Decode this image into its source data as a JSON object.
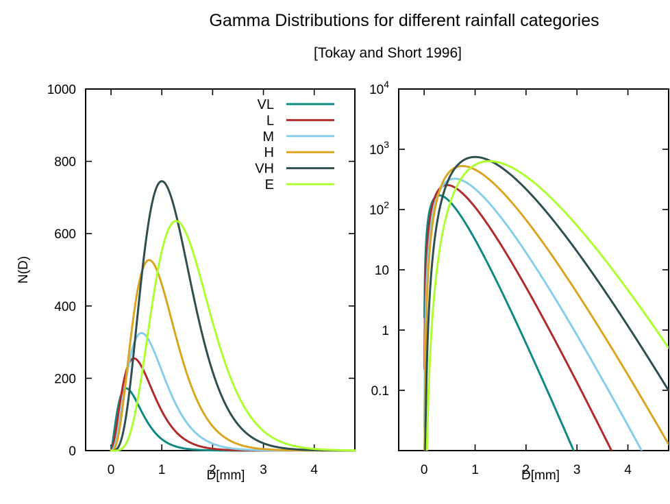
{
  "title": "Gamma Distributions for different rainfall categories",
  "subtitle": "[Tokay and Short 1996]",
  "chart_data": [
    {
      "type": "line",
      "panel": "linear",
      "xlabel": "D[mm]",
      "ylabel": "N(D)",
      "xlim": [
        -0.5,
        4.8
      ],
      "ylim": [
        0,
        1000
      ],
      "x_ticks": [
        0,
        1,
        2,
        3,
        4
      ],
      "x_tick_labels": [
        "0",
        "1",
        "2",
        "3",
        "4"
      ],
      "y_ticks": [
        0,
        200,
        400,
        600,
        800,
        1000
      ],
      "y_tick_labels": [
        "0",
        "200",
        "400",
        "600",
        "800",
        "1000"
      ],
      "y_scale": "linear",
      "grid": false,
      "legend_position": "top-right",
      "x_range": [
        0,
        4.8
      ],
      "series": [
        {
          "name": "VL",
          "color": "#0f8a80",
          "mu": 1.5,
          "peak_D": 0.3,
          "peak_N": 172
        },
        {
          "name": "L",
          "color": "#b22a2a",
          "mu": 2.0,
          "peak_D": 0.45,
          "peak_N": 255
        },
        {
          "name": "M",
          "color": "#87ceeb",
          "mu": 2.5,
          "peak_D": 0.6,
          "peak_N": 325
        },
        {
          "name": "H",
          "color": "#daa520",
          "mu": 3.0,
          "peak_D": 0.75,
          "peak_N": 527
        },
        {
          "name": "VH",
          "color": "#2f4f4f",
          "mu": 4.0,
          "peak_D": 1.0,
          "peak_N": 745
        },
        {
          "name": "E",
          "color": "#adff2f",
          "mu": 5.0,
          "peak_D": 1.28,
          "peak_N": 635
        }
      ]
    },
    {
      "type": "line",
      "panel": "log",
      "xlabel": "D[mm]",
      "ylabel": "",
      "xlim": [
        -0.5,
        4.8
      ],
      "ylim": [
        0.01,
        10000
      ],
      "x_ticks": [
        0,
        1,
        2,
        3,
        4
      ],
      "x_tick_labels": [
        "0",
        "1",
        "2",
        "3",
        "4"
      ],
      "y_scale": "log",
      "y_ticks": [
        0.1,
        1,
        10,
        100,
        1000,
        10000
      ],
      "y_tick_labels": [
        {
          "base": "0.1"
        },
        {
          "base": "1"
        },
        {
          "base": "10"
        },
        {
          "base": "10",
          "exp": "2"
        },
        {
          "base": "10",
          "exp": "3"
        },
        {
          "base": "10",
          "exp": "4"
        }
      ],
      "grid": false,
      "series_ref": "same as linear panel"
    }
  ]
}
